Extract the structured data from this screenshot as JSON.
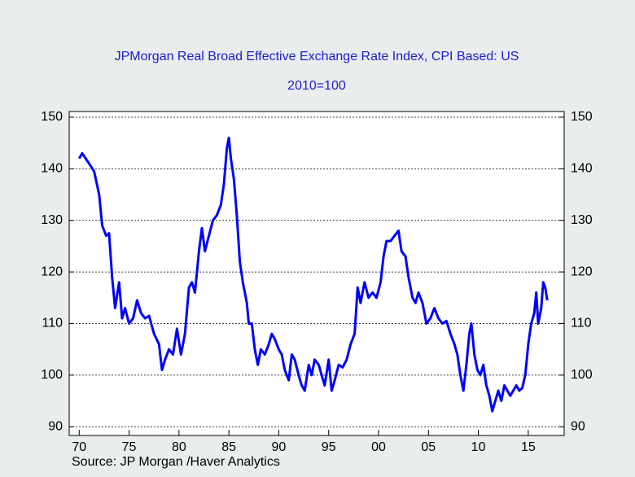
{
  "chart_data": {
    "type": "line",
    "title": "JPMorgan Real Broad Effective Exchange Rate Index, CPI Based: US",
    "subtitle": "2010=100",
    "source": "Source:  JP Morgan /Haver Analytics",
    "xlim": [
      1969,
      2018.6
    ],
    "xticks": [
      {
        "value": 1970,
        "label": "70"
      },
      {
        "value": 1975,
        "label": "75"
      },
      {
        "value": 1980,
        "label": "80"
      },
      {
        "value": 1985,
        "label": "85"
      },
      {
        "value": 1990,
        "label": "90"
      },
      {
        "value": 1995,
        "label": "95"
      },
      {
        "value": 2000,
        "label": "00"
      },
      {
        "value": 2005,
        "label": "05"
      },
      {
        "value": 2010,
        "label": "10"
      },
      {
        "value": 2015,
        "label": "15"
      }
    ],
    "ylim": [
      88.3,
      151.1
    ],
    "yticks": [
      90,
      100,
      110,
      120,
      130,
      140,
      150
    ],
    "grid": true,
    "x": [
      1970.0,
      1970.3,
      1971.0,
      1971.5,
      1972.0,
      1972.3,
      1972.7,
      1973.0,
      1973.3,
      1973.6,
      1974.0,
      1974.3,
      1974.6,
      1975.0,
      1975.4,
      1975.8,
      1976.2,
      1976.6,
      1977.0,
      1977.5,
      1978.0,
      1978.3,
      1978.6,
      1979.0,
      1979.4,
      1979.8,
      1980.2,
      1980.6,
      1981.0,
      1981.3,
      1981.6,
      1982.0,
      1982.3,
      1982.6,
      1983.0,
      1983.4,
      1983.8,
      1984.2,
      1984.5,
      1984.8,
      1985.0,
      1985.2,
      1985.5,
      1985.8,
      1986.1,
      1986.4,
      1986.8,
      1987.0,
      1987.3,
      1987.6,
      1987.9,
      1988.2,
      1988.6,
      1989.0,
      1989.3,
      1989.6,
      1990.0,
      1990.3,
      1990.6,
      1991.0,
      1991.3,
      1991.6,
      1992.0,
      1992.3,
      1992.6,
      1993.0,
      1993.3,
      1993.6,
      1994.0,
      1994.3,
      1994.6,
      1995.0,
      1995.3,
      1995.6,
      1996.0,
      1996.4,
      1996.8,
      1997.2,
      1997.6,
      1997.9,
      1998.2,
      1998.6,
      1999.0,
      1999.4,
      1999.8,
      2000.2,
      2000.5,
      2000.8,
      2001.2,
      2001.6,
      2002.0,
      2002.3,
      2002.7,
      2003.0,
      2003.4,
      2003.7,
      2004.0,
      2004.4,
      2004.8,
      2005.2,
      2005.6,
      2006.0,
      2006.4,
      2006.8,
      2007.2,
      2007.6,
      2007.9,
      2008.2,
      2008.5,
      2008.8,
      2009.1,
      2009.3,
      2009.6,
      2009.9,
      2010.2,
      2010.5,
      2010.8,
      2011.1,
      2011.4,
      2011.7,
      2012.0,
      2012.3,
      2012.6,
      2012.9,
      2013.2,
      2013.5,
      2013.8,
      2014.1,
      2014.4,
      2014.7,
      2015.0,
      2015.3,
      2015.6,
      2015.8,
      2016.0,
      2016.3,
      2016.5,
      2016.7,
      2016.9
    ],
    "series": [
      {
        "name": "Real Broad Effective Exchange Rate Index",
        "color": "#0000ff",
        "values": [
          142,
          143,
          141,
          139.5,
          135,
          129,
          127,
          127.5,
          119,
          113,
          118,
          111,
          113,
          110,
          111,
          114.5,
          112,
          111,
          111.5,
          108,
          106,
          101,
          103,
          105,
          104,
          109,
          104,
          108,
          117,
          118,
          116,
          124,
          128.5,
          124,
          127,
          130,
          131,
          133,
          137,
          144,
          146,
          142,
          138,
          131,
          122,
          118,
          114,
          110,
          110,
          105,
          102,
          105,
          104,
          106,
          108,
          107,
          105,
          104,
          101,
          99,
          104,
          103,
          100,
          98,
          97,
          102,
          100,
          103,
          102,
          100,
          98,
          103,
          97,
          99,
          102,
          101.5,
          103,
          106,
          108,
          117,
          114,
          118,
          115,
          116,
          115,
          118,
          123,
          126,
          126,
          127,
          128,
          124,
          123,
          119,
          115,
          114,
          116,
          114,
          110,
          111,
          113,
          111,
          110,
          110.5,
          108,
          106,
          104,
          100,
          97,
          102,
          108,
          110,
          104,
          101,
          100,
          102,
          98,
          96,
          93,
          95,
          97,
          95,
          98,
          97,
          96,
          97,
          98,
          97,
          97.5,
          100,
          106,
          110,
          112,
          116,
          110,
          113,
          118,
          117,
          114.5
        ]
      }
    ]
  }
}
